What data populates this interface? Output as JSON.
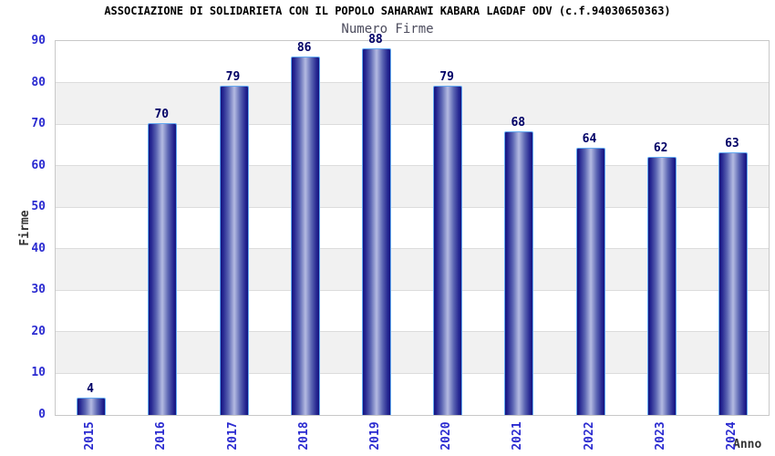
{
  "chart_data": {
    "type": "bar",
    "title": "ASSOCIAZIONE DI SOLIDARIETA CON IL POPOLO SAHARAWI KABARA LAGDAF ODV (c.f.94030650363)",
    "subtitle": "Numero Firme",
    "categories": [
      "2015",
      "2016",
      "2017",
      "2018",
      "2019",
      "2020",
      "2021",
      "2022",
      "2023",
      "2024"
    ],
    "values": [
      4,
      70,
      79,
      86,
      88,
      79,
      68,
      64,
      62,
      63
    ],
    "xlabel": "Anno",
    "ylabel": "Firme",
    "ylim": [
      0,
      90
    ],
    "ytick_step": 10,
    "yticks": [
      0,
      10,
      20,
      30,
      40,
      50,
      60,
      70,
      80,
      90
    ],
    "grid": true,
    "grid_bands": "alternating horizontal white/gray bands of 10 units",
    "legend": false,
    "bar_value_labels_visible": true,
    "colors": {
      "background": "#ffffff",
      "title": "#000000",
      "subtitle": "#4d4d5e",
      "tick_label": "#2b2bd0",
      "value_label": "#000066",
      "axis_title": "#333333",
      "bar_dark": "#14147e",
      "bar_mid": "#5a64b2",
      "bar_light": "#b4bbe2",
      "bar_outline": "#63a9f1",
      "band_gray": "#f1f1f1",
      "gridline": "#dcdcdc",
      "plot_border": "#c8c8c8"
    }
  }
}
